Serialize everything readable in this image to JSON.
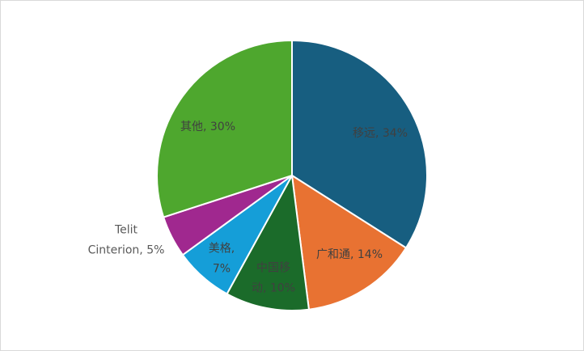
{
  "chart_data": {
    "type": "pie",
    "values": [
      34,
      14,
      10,
      7,
      5,
      30
    ],
    "value_labels": [
      "移远, 34%",
      "广和通, 14%",
      "中国移\n动, 10%",
      "美格,\n7%",
      "Telit\nCinterion, 5%",
      "其他, 30%"
    ],
    "colors": [
      "#175e80",
      "#e87232",
      "#1b6b2a",
      "#159ed8",
      "#a0288f",
      "#4ea72e"
    ]
  }
}
